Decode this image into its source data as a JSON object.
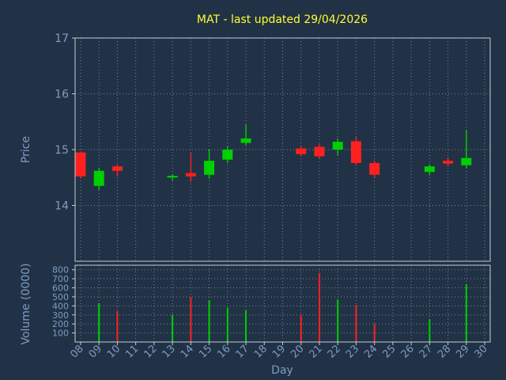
{
  "title": "MAT - last updated 29/04/2026",
  "colors": {
    "background": "#213246",
    "title": "#ffff33",
    "label": "#7e9cc0",
    "frame": "#c2ccd8",
    "grid": "#8294a8",
    "up": "#00d000",
    "down": "#ff2020"
  },
  "chart_data": [
    {
      "type": "candlestick",
      "title": "MAT - last updated 29/04/2026",
      "xlabel": "Day",
      "ylabel": "Price",
      "grid": true,
      "legend": "none",
      "xlim": [
        7.7,
        30.3
      ],
      "ylim": [
        13.0,
        17.0
      ],
      "y_ticks": [
        14,
        15,
        16,
        17
      ],
      "x_ticks": [
        "08",
        "09",
        "10",
        "11",
        "12",
        "13",
        "14",
        "15",
        "16",
        "17",
        "18",
        "19",
        "20",
        "21",
        "22",
        "23",
        "24",
        "25",
        "26",
        "27",
        "28",
        "29",
        "30"
      ],
      "candles": [
        {
          "day": 8,
          "open": 14.95,
          "high": 14.97,
          "low": 14.48,
          "close": 14.52
        },
        {
          "day": 9,
          "open": 14.35,
          "high": 14.67,
          "low": 14.28,
          "close": 14.62
        },
        {
          "day": 10,
          "open": 14.7,
          "high": 14.74,
          "low": 14.52,
          "close": 14.62
        },
        {
          "day": 13,
          "open": 14.5,
          "high": 14.56,
          "low": 14.44,
          "close": 14.53
        },
        {
          "day": 14,
          "open": 14.58,
          "high": 14.95,
          "low": 14.42,
          "close": 14.52
        },
        {
          "day": 15,
          "open": 14.55,
          "high": 15.0,
          "low": 14.48,
          "close": 14.8
        },
        {
          "day": 16,
          "open": 14.82,
          "high": 15.06,
          "low": 14.76,
          "close": 15.0
        },
        {
          "day": 17,
          "open": 15.12,
          "high": 15.45,
          "low": 15.08,
          "close": 15.2
        },
        {
          "day": 20,
          "open": 15.02,
          "high": 15.07,
          "low": 14.88,
          "close": 14.92
        },
        {
          "day": 21,
          "open": 15.05,
          "high": 15.1,
          "low": 14.84,
          "close": 14.88
        },
        {
          "day": 22,
          "open": 15.0,
          "high": 15.2,
          "low": 14.9,
          "close": 15.14
        },
        {
          "day": 23,
          "open": 15.15,
          "high": 15.22,
          "low": 14.72,
          "close": 14.76
        },
        {
          "day": 24,
          "open": 14.76,
          "high": 14.8,
          "low": 14.5,
          "close": 14.55
        },
        {
          "day": 27,
          "open": 14.6,
          "high": 14.74,
          "low": 14.54,
          "close": 14.7
        },
        {
          "day": 28,
          "open": 14.8,
          "high": 14.86,
          "low": 14.7,
          "close": 14.75
        },
        {
          "day": 29,
          "open": 14.72,
          "high": 15.35,
          "low": 14.66,
          "close": 14.85
        }
      ]
    },
    {
      "type": "bar",
      "ylabel": "Volume (0000)",
      "grid": true,
      "ylim": [
        0,
        850
      ],
      "y_ticks": [
        100,
        200,
        300,
        400,
        500,
        600,
        700,
        800
      ],
      "bars": [
        {
          "day": 9,
          "value": 430
        },
        {
          "day": 10,
          "value": 340
        },
        {
          "day": 13,
          "value": 300
        },
        {
          "day": 14,
          "value": 500
        },
        {
          "day": 15,
          "value": 460
        },
        {
          "day": 16,
          "value": 380
        },
        {
          "day": 17,
          "value": 350
        },
        {
          "day": 20,
          "value": 300
        },
        {
          "day": 21,
          "value": 760
        },
        {
          "day": 22,
          "value": 470
        },
        {
          "day": 23,
          "value": 410
        },
        {
          "day": 24,
          "value": 200
        },
        {
          "day": 27,
          "value": 250
        },
        {
          "day": 29,
          "value": 640
        }
      ]
    }
  ]
}
